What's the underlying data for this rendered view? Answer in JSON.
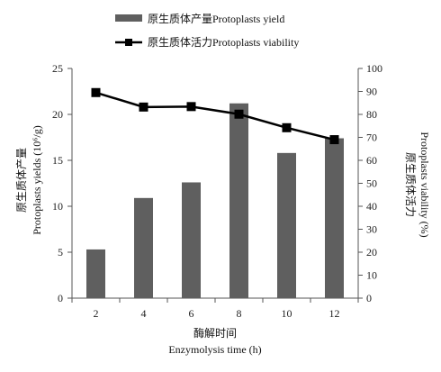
{
  "chart_data": {
    "type": "bar",
    "categories": [
      "2",
      "4",
      "6",
      "8",
      "10",
      "12"
    ],
    "series": [
      {
        "name": "原生质体产量Protoplasts  yield",
        "type": "bar",
        "axis": "left",
        "color": "#5f5f5f",
        "values": [
          5.3,
          10.9,
          12.6,
          21.2,
          15.8,
          17.4
        ]
      },
      {
        "name": "原生质体活力Protoplasts  viability",
        "type": "line",
        "axis": "right",
        "color": "#000000",
        "marker": "square",
        "values": [
          89.5,
          83.2,
          83.4,
          80.1,
          74.2,
          69.0
        ]
      }
    ],
    "xlabel_cn": "酶解时间",
    "xlabel_en": "Enzymolysis  time (h)",
    "ylabel_left_cn": "原生质体产量",
    "ylabel_left_en": "Protoplasts yields (10⁶/g)",
    "ylabel_right_cn": "原生质体活力",
    "ylabel_right_en": "Protoplasts viability  (%)",
    "ylim_left": [
      0,
      25
    ],
    "ylim_right": [
      0,
      100
    ],
    "yticks_left": [
      "0",
      "5",
      "10",
      "15",
      "20",
      "25"
    ],
    "yticks_right": [
      "0",
      "10",
      "20",
      "30",
      "40",
      "50",
      "60",
      "70",
      "80",
      "90",
      "100"
    ],
    "legend_position": "top-center",
    "grid": false
  }
}
